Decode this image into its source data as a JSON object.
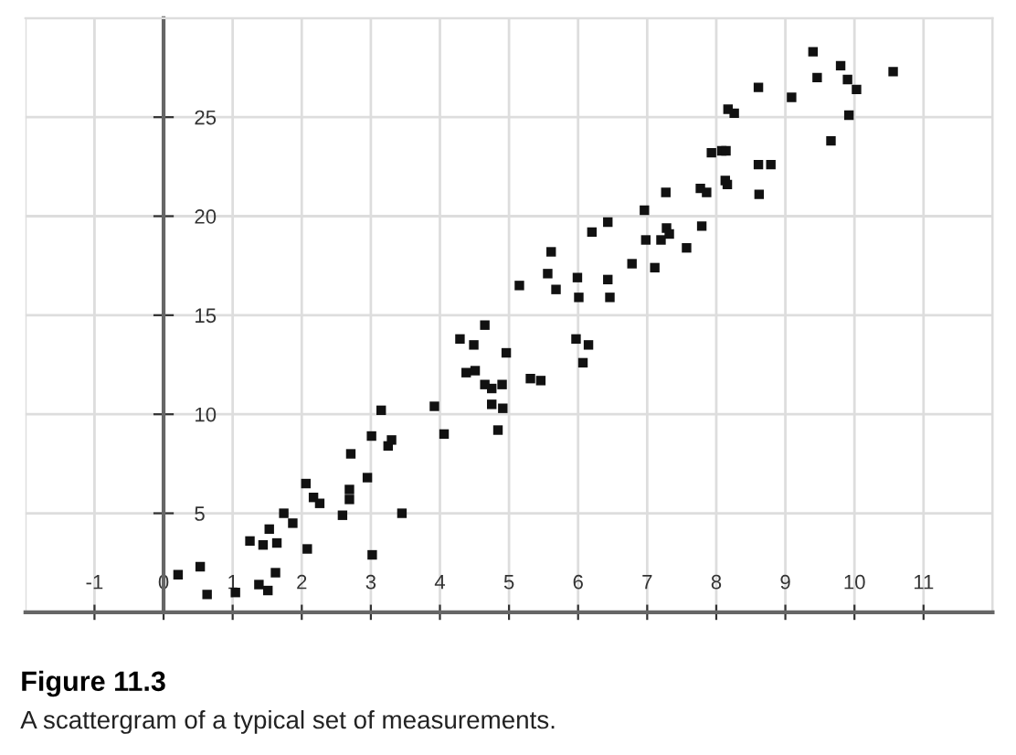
{
  "chart_data": {
    "type": "scatter",
    "title": "Figure 11.3",
    "annotations": [
      "A scattergram of a typical set of measurements."
    ],
    "xlim": [
      -2,
      12
    ],
    "ylim": [
      0,
      30
    ],
    "xticks": [
      -1,
      0,
      1,
      2,
      3,
      4,
      5,
      6,
      7,
      8,
      9,
      10,
      11
    ],
    "yticks": [
      5,
      10,
      15,
      20,
      25
    ],
    "grid": true,
    "marker": "square",
    "series": [
      {
        "color": "#111111",
        "x": [
          0.21,
          0.53,
          0.63,
          1.04,
          1.25,
          1.44,
          1.38,
          1.51,
          1.53,
          1.64,
          1.62,
          1.74,
          1.87,
          2.06,
          2.08,
          2.17,
          2.26,
          2.59,
          2.69,
          2.69,
          2.71,
          2.95,
          3.01,
          3.02,
          3.15,
          3.25,
          3.3,
          3.45,
          3.92,
          4.06,
          4.29,
          4.38,
          4.51,
          4.49,
          4.65,
          4.65,
          4.75,
          4.75,
          4.84,
          4.91,
          4.9,
          4.96,
          5.97,
          6.15,
          6.07,
          5.31,
          5.46,
          5.15,
          5.56,
          5.61,
          5.68,
          5.99,
          6.01,
          6.43,
          6.46,
          6.2,
          6.43,
          6.78,
          6.96,
          6.98,
          7.11,
          7.2,
          7.27,
          7.28,
          7.32,
          7.57,
          7.79,
          7.77,
          7.86,
          7.93,
          8.08,
          8.14,
          8.13,
          8.16,
          8.17,
          8.26,
          8.61,
          8.79,
          8.61,
          8.62,
          9.09,
          9.4,
          9.46,
          9.66,
          9.8,
          9.9,
          9.92,
          10.03,
          10.56
        ],
        "values": [
          1.9,
          2.3,
          0.9,
          1.0,
          3.6,
          3.4,
          1.4,
          1.1,
          4.2,
          3.5,
          2.0,
          5.0,
          4.5,
          6.5,
          3.2,
          5.8,
          5.5,
          4.9,
          6.2,
          5.7,
          8.0,
          6.8,
          8.9,
          2.9,
          10.2,
          8.4,
          8.7,
          5.0,
          10.4,
          9.0,
          13.8,
          12.1,
          12.2,
          13.5,
          14.5,
          11.5,
          11.3,
          10.5,
          9.2,
          10.3,
          11.5,
          13.1,
          13.8,
          13.5,
          12.6,
          11.8,
          11.7,
          16.5,
          17.1,
          18.2,
          16.3,
          16.9,
          15.9,
          16.8,
          15.9,
          19.2,
          19.7,
          17.6,
          20.3,
          18.8,
          17.4,
          18.8,
          21.2,
          19.4,
          19.1,
          18.4,
          19.5,
          21.4,
          21.2,
          23.2,
          23.3,
          23.3,
          21.8,
          21.6,
          25.4,
          25.2,
          22.6,
          22.6,
          26.5,
          21.1,
          26.0,
          28.3,
          27.0,
          23.8,
          27.6,
          26.9,
          25.1,
          26.4,
          27.3
        ]
      }
    ]
  }
}
